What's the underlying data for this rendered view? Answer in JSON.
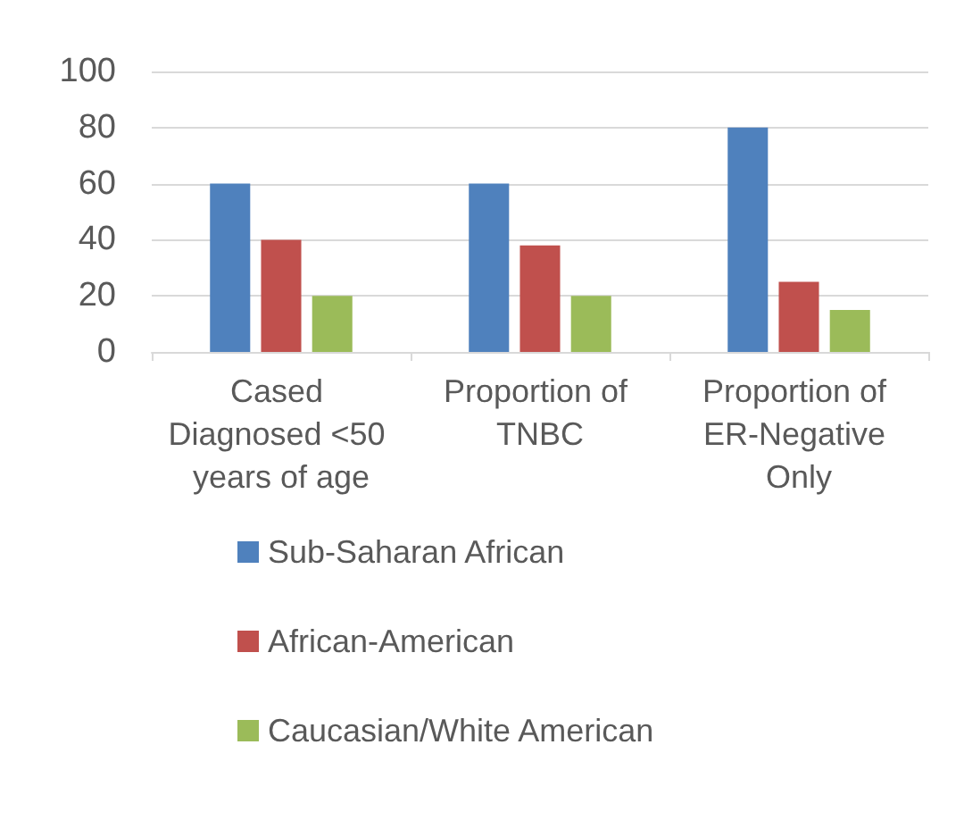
{
  "chart_data": {
    "type": "bar",
    "categories": [
      "Cased Diagnosed <50 years of age",
      "Proportion of TNBC",
      "Proportion of ER-Negative Only"
    ],
    "series": [
      {
        "name": "Sub-Saharan African",
        "color": "#4f81bd",
        "values": [
          60,
          60,
          80
        ]
      },
      {
        "name": "African-American",
        "color": "#c0504d",
        "values": [
          40,
          38,
          25
        ]
      },
      {
        "name": "Caucasian/White American",
        "color": "#9bbb59",
        "values": [
          20,
          20,
          15
        ]
      }
    ],
    "ylim": [
      0,
      100
    ],
    "yticks": [
      0,
      20,
      40,
      60,
      80,
      100
    ],
    "grid": "y",
    "legend": "bottom"
  }
}
